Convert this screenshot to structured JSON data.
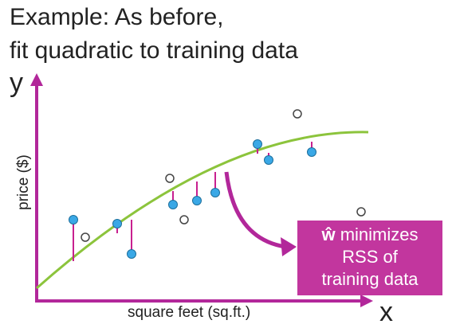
{
  "title_line1": "Example: As before,",
  "title_line2": "fit quadratic to training data",
  "y_symbol": "y",
  "x_symbol": "x",
  "x_axis_label": "square feet (sq.ft.)",
  "y_axis_label": "price ($)",
  "callout": {
    "w_symbol": "ŵ",
    "line1_rest": " minimizes",
    "line2": "RSS of",
    "line3": "training data"
  },
  "colors": {
    "axis": "#b2279a",
    "curve": "#8cc43c",
    "residual": "#c8208f",
    "train_point": "#3aa8e6",
    "test_point": "#ffffff",
    "callout_bg": "#c2369e"
  },
  "chart_data": {
    "type": "scatter",
    "curve": "quadratic",
    "training_points_count": 10,
    "other_points_count": 5
  }
}
